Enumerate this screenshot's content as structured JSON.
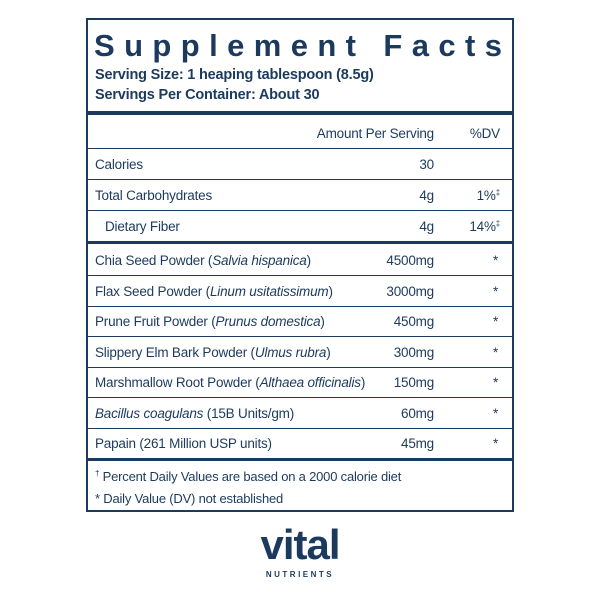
{
  "label": {
    "title": "Supplement Facts",
    "serving_size": "Serving Size: 1 heaping tablespoon (8.5g)",
    "servings_per_container": "Servings Per Container: About 30",
    "header": {
      "amount": "Amount Per Serving",
      "dv": "%DV"
    },
    "nutrients": [
      {
        "name": "Calories",
        "amount": "30"
      },
      {
        "name": "Total Carbohydrates",
        "amount": "4g",
        "dv": "1%",
        "dv_mark": "‡"
      },
      {
        "name": "Dietary Fiber",
        "amount": "4g",
        "dv": "14%",
        "dv_mark": "‡",
        "indent": true
      }
    ],
    "ingredients": [
      {
        "name": [
          {
            "text": "Chia Seed Powder ("
          },
          {
            "text": "Salvia hispanica",
            "italic": true
          },
          {
            "text": ")"
          }
        ],
        "amount": "4500mg",
        "dv": "*"
      },
      {
        "name": [
          {
            "text": "Flax Seed Powder ("
          },
          {
            "text": "Linum usitatissimum",
            "italic": true
          },
          {
            "text": ")"
          }
        ],
        "amount": "3000mg",
        "dv": "*"
      },
      {
        "name": [
          {
            "text": "Prune Fruit Powder ("
          },
          {
            "text": "Prunus domestica",
            "italic": true
          },
          {
            "text": ")"
          }
        ],
        "amount": "450mg",
        "dv": "*"
      },
      {
        "name": [
          {
            "text": "Slippery Elm Bark Powder ("
          },
          {
            "text": "Ulmus rubra",
            "italic": true
          },
          {
            "text": ")"
          }
        ],
        "amount": "300mg",
        "dv": "*"
      },
      {
        "name": [
          {
            "text": "Marshmallow Root Powder ("
          },
          {
            "text": "Althaea officinalis",
            "italic": true
          },
          {
            "text": ")"
          }
        ],
        "amount": "150mg",
        "dv": "*"
      },
      {
        "name": [
          {
            "text": "Bacillus coagulans",
            "italic": true
          },
          {
            "text": " (15B Units/gm)"
          }
        ],
        "amount": "60mg",
        "dv": "*"
      },
      {
        "name": [
          {
            "text": "Papain (261 Million USP units)"
          }
        ],
        "amount": "45mg",
        "dv": "*"
      }
    ],
    "footnotes": [
      {
        "symbol": "†",
        "text": " Percent Daily Values are based on a 2000 calorie diet"
      },
      {
        "text": "* Daily Value (DV) not established"
      }
    ]
  },
  "logo": {
    "brand": "vital",
    "sub": "NUTRIENTS"
  }
}
